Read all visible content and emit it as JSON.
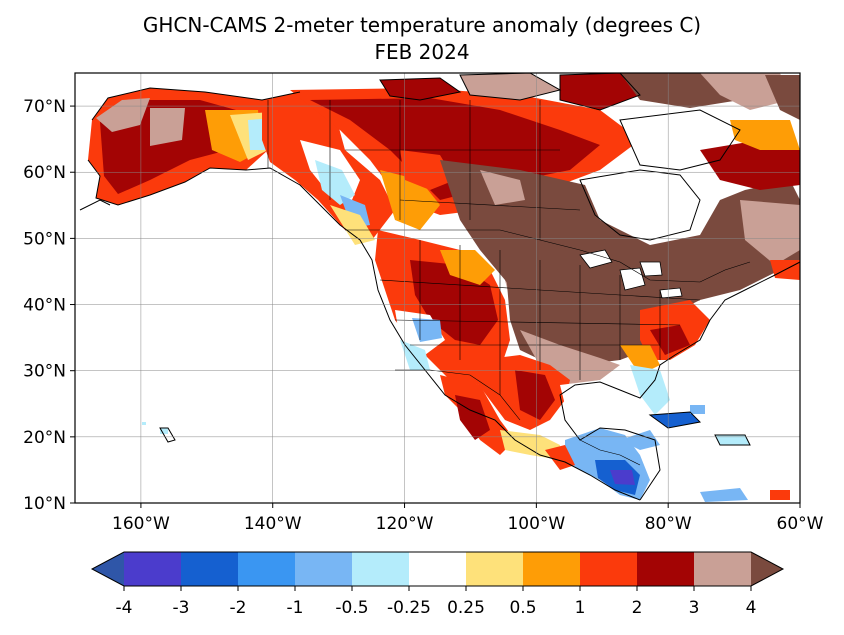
{
  "title": {
    "line1": "GHCN-CAMS 2-meter temperature anomaly (degrees C)",
    "line2": "FEB 2024"
  },
  "map": {
    "projection": "equirectangular",
    "lon_range": [
      -170,
      -60
    ],
    "lat_range": [
      10,
      75
    ],
    "lat_ticks": [
      {
        "v": 70,
        "label": "70°N"
      },
      {
        "v": 60,
        "label": "60°N"
      },
      {
        "v": 50,
        "label": "50°N"
      },
      {
        "v": 40,
        "label": "40°N"
      },
      {
        "v": 30,
        "label": "30°N"
      },
      {
        "v": 20,
        "label": "20°N"
      },
      {
        "v": 10,
        "label": "10°N"
      }
    ],
    "lon_ticks": [
      {
        "v": -160,
        "label": "160°W"
      },
      {
        "v": -140,
        "label": "140°W"
      },
      {
        "v": -120,
        "label": "120°W"
      },
      {
        "v": -100,
        "label": "100°W"
      },
      {
        "v": -80,
        "label": "80°W"
      },
      {
        "v": -60,
        "label": "60°W"
      }
    ],
    "grid": true
  },
  "colorbar": {
    "extend": "both",
    "ticks": [
      "-4",
      "-3",
      "-2",
      "-1",
      "-0.5",
      "-0.25",
      "0.25",
      "0.5",
      "1",
      "2",
      "3",
      "4"
    ],
    "colors": {
      "under": "#2f56a8",
      "bins": [
        "#4b3ccc",
        "#1560d0",
        "#3a96f2",
        "#78b6f4",
        "#b4ecfb",
        "#ffffff",
        "#fee17a",
        "#fe9d06",
        "#fb3a0c",
        "#a30404",
        "#c9a096"
      ],
      "over": "#7a4a3e"
    }
  }
}
